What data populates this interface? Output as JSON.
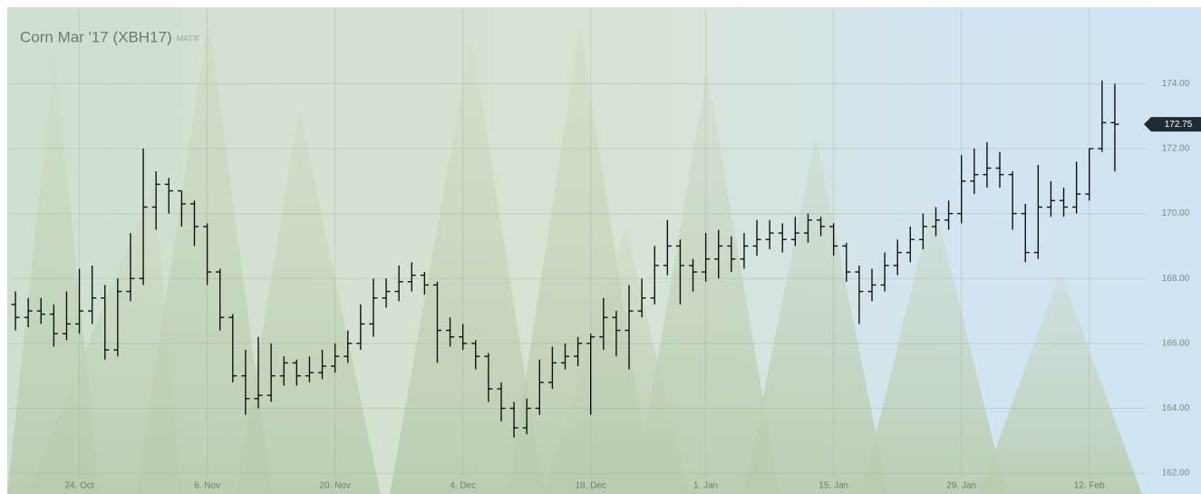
{
  "chart_data": {
    "type": "ohlc",
    "title": "Corn Mar '17 (XBH17)",
    "subtitle": "MATIF",
    "color": "#111111",
    "categories": [
      null,
      null,
      null,
      null,
      null,
      "24. Oct",
      null,
      null,
      null,
      null,
      null,
      null,
      null,
      null,
      null,
      "6. Nov",
      null,
      null,
      null,
      null,
      null,
      null,
      null,
      null,
      null,
      "20. Nov",
      null,
      null,
      null,
      null,
      null,
      null,
      null,
      null,
      null,
      "4. Dec",
      null,
      null,
      null,
      null,
      null,
      null,
      null,
      null,
      null,
      "18. Dec",
      null,
      null,
      null,
      null,
      null,
      null,
      null,
      null,
      "1. Jan",
      null,
      null,
      null,
      null,
      null,
      null,
      null,
      null,
      null,
      "15. Jan",
      null,
      null,
      null,
      null,
      null,
      null,
      null,
      null,
      null,
      "29. Jan",
      null,
      null,
      null,
      null,
      null,
      null,
      null,
      null,
      null,
      "12. Feb",
      null,
      null
    ],
    "open": [
      167.2,
      166.8,
      167.0,
      166.9,
      166.3,
      166.6,
      167.0,
      167.4,
      165.8,
      167.6,
      168.0,
      170.2,
      170.9,
      170.7,
      170.3,
      169.6,
      168.2,
      166.8,
      165.0,
      164.3,
      164.4,
      165.0,
      165.4,
      165.0,
      165.1,
      165.3,
      165.6,
      166.0,
      166.6,
      167.4,
      167.6,
      167.9,
      168.1,
      167.8,
      166.4,
      166.2,
      166.0,
      165.6,
      164.6,
      164.0,
      163.4,
      164.0,
      164.8,
      165.4,
      165.6,
      166.0,
      166.2,
      166.8,
      166.4,
      167.0,
      167.4,
      168.4,
      169.0,
      168.4,
      168.2,
      168.6,
      169.0,
      168.6,
      169.0,
      169.2,
      169.4,
      169.2,
      169.4,
      169.8,
      169.6,
      169.0,
      168.2,
      167.6,
      167.8,
      168.4,
      168.8,
      169.2,
      169.6,
      169.8,
      170.0,
      171.0,
      171.2,
      171.4,
      171.2,
      170.0,
      168.8,
      170.2,
      170.4,
      170.2,
      170.6,
      172.0,
      172.8
    ],
    "high": [
      167.6,
      167.4,
      167.4,
      167.2,
      167.6,
      168.3,
      168.4,
      167.8,
      168.0,
      169.4,
      172.0,
      171.3,
      171.1,
      170.7,
      170.4,
      169.7,
      168.3,
      166.9,
      165.8,
      166.2,
      166.0,
      165.6,
      165.5,
      165.6,
      165.8,
      166.0,
      166.4,
      167.2,
      168.0,
      168.0,
      168.4,
      168.5,
      168.2,
      167.9,
      166.8,
      166.6,
      166.1,
      165.7,
      164.8,
      164.2,
      164.3,
      165.5,
      165.9,
      166.0,
      166.2,
      166.3,
      167.4,
      167.0,
      167.8,
      168.0,
      169.0,
      169.8,
      169.2,
      168.6,
      169.4,
      169.5,
      169.3,
      169.4,
      169.8,
      169.8,
      169.7,
      169.9,
      170.0,
      169.9,
      169.7,
      169.1,
      168.4,
      168.3,
      168.8,
      169.2,
      169.6,
      170.0,
      170.2,
      170.4,
      171.8,
      172.0,
      172.2,
      171.9,
      171.3,
      170.3,
      171.5,
      171.0,
      170.8,
      171.6,
      172.0,
      174.1,
      174.0
    ],
    "low": [
      166.4,
      166.5,
      166.6,
      165.9,
      166.1,
      166.3,
      166.6,
      165.5,
      165.6,
      167.3,
      167.8,
      169.5,
      170.0,
      169.6,
      169.0,
      167.8,
      166.4,
      164.8,
      163.8,
      164.0,
      164.2,
      164.7,
      164.7,
      164.8,
      164.9,
      165.1,
      165.4,
      165.8,
      166.2,
      167.1,
      167.3,
      167.6,
      167.5,
      165.4,
      165.9,
      165.8,
      165.2,
      164.2,
      163.6,
      163.1,
      163.2,
      163.8,
      164.6,
      165.2,
      165.3,
      163.8,
      165.8,
      165.6,
      165.2,
      166.8,
      167.2,
      168.1,
      167.2,
      167.6,
      167.9,
      168.0,
      168.2,
      168.3,
      168.7,
      168.9,
      168.8,
      169.0,
      169.1,
      169.3,
      168.7,
      167.9,
      166.6,
      167.3,
      167.6,
      168.1,
      168.5,
      168.9,
      169.3,
      169.5,
      169.7,
      170.6,
      170.8,
      170.8,
      169.5,
      168.5,
      168.6,
      169.9,
      169.9,
      170.0,
      170.4,
      171.9,
      171.3
    ],
    "close": [
      166.8,
      167.0,
      166.9,
      166.3,
      166.6,
      167.0,
      167.4,
      165.8,
      167.6,
      168.0,
      170.2,
      170.9,
      170.7,
      170.3,
      169.6,
      168.2,
      166.8,
      165.0,
      164.3,
      164.4,
      165.0,
      165.4,
      165.0,
      165.1,
      165.3,
      165.6,
      166.0,
      166.6,
      167.4,
      167.6,
      167.9,
      168.1,
      167.8,
      166.4,
      166.2,
      166.0,
      165.6,
      164.6,
      164.0,
      163.4,
      164.0,
      164.8,
      165.4,
      165.6,
      166.0,
      166.2,
      166.8,
      166.4,
      167.0,
      167.4,
      168.4,
      169.0,
      168.4,
      168.2,
      168.6,
      169.0,
      168.6,
      169.0,
      169.2,
      169.4,
      169.2,
      169.4,
      169.8,
      169.6,
      169.0,
      168.2,
      167.6,
      167.8,
      168.4,
      168.8,
      169.2,
      169.6,
      169.8,
      170.0,
      171.0,
      171.2,
      171.4,
      171.2,
      170.0,
      168.8,
      170.2,
      170.4,
      170.2,
      170.6,
      172.0,
      172.8,
      172.75
    ],
    "ylim": [
      161.5,
      176.3
    ],
    "yticks": [
      {
        "value": 162,
        "label": "162.00"
      },
      {
        "value": 164,
        "label": "164.00"
      },
      {
        "value": 166,
        "label": "166.00"
      },
      {
        "value": 168,
        "label": "168.00"
      },
      {
        "value": 170,
        "label": "170.00"
      },
      {
        "value": 172,
        "label": "172.00"
      },
      {
        "value": 174,
        "label": "174.00"
      }
    ],
    "last_price": {
      "value": 172.75,
      "label": "172.75"
    },
    "grid": true
  }
}
